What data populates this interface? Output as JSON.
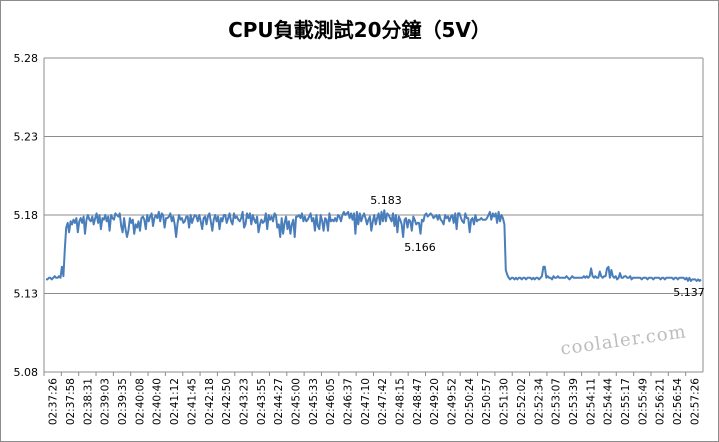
{
  "chart_data": {
    "type": "line",
    "title": "CPU負載測試20分鐘（5V）",
    "xlabel": "",
    "ylabel": "",
    "ylim": [
      5.08,
      5.28
    ],
    "y_ticks": [
      "5.28",
      "5.23",
      "5.18",
      "5.13",
      "5.08"
    ],
    "x_tick_labels": [
      "02:37:26",
      "02:37:58",
      "02:38:31",
      "02:39:03",
      "02:39:35",
      "02:40:08",
      "02:40:40",
      "02:41:12",
      "02:41:45",
      "02:42:18",
      "02:42:50",
      "02:43:23",
      "02:43:55",
      "02:44:27",
      "02:45:00",
      "02:45:33",
      "02:46:05",
      "02:46:37",
      "02:47:10",
      "02:47:42",
      "02:48:15",
      "02:48:47",
      "02:49:20",
      "02:49:52",
      "02:50:24",
      "02:50:57",
      "02:51:30",
      "02:52:02",
      "02:52:34",
      "02:53:07",
      "02:53:39",
      "02:54:11",
      "02:54:44",
      "02:55:17",
      "02:55:49",
      "02:56:21",
      "02:56:54",
      "02:57:26"
    ],
    "grid": true,
    "legend": "none",
    "line_color": "#4a7ebb",
    "annotations": [
      {
        "text": "5.183",
        "x": "02:47:26",
        "y": 5.183
      },
      {
        "text": "5.166",
        "x": "02:48:31",
        "y": 5.166
      },
      {
        "text": "5.137",
        "x": "02:57:40",
        "y": 5.137
      }
    ],
    "series": [
      {
        "values": [
          5.139,
          5.139,
          5.14,
          5.14,
          5.139,
          5.14,
          5.141,
          5.14,
          5.14,
          5.141,
          5.14,
          5.147,
          5.141,
          5.158,
          5.172,
          5.175,
          5.169,
          5.176,
          5.174,
          5.177,
          5.175,
          5.178,
          5.169,
          5.176,
          5.178,
          5.175,
          5.179,
          5.168,
          5.177,
          5.18,
          5.177,
          5.176,
          5.179,
          5.174,
          5.178,
          5.181,
          5.175,
          5.18,
          5.171,
          5.178,
          5.177,
          5.18,
          5.176,
          5.179,
          5.17,
          5.18,
          5.178,
          5.177,
          5.181,
          5.18,
          5.179,
          5.181,
          5.173,
          5.169,
          5.178,
          5.171,
          5.166,
          5.17,
          5.178,
          5.175,
          5.177,
          5.168,
          5.174,
          5.172,
          5.176,
          5.17,
          5.178,
          5.179,
          5.177,
          5.171,
          5.18,
          5.176,
          5.179,
          5.181,
          5.173,
          5.178,
          5.18,
          5.178,
          5.182,
          5.176,
          5.181,
          5.18,
          5.172,
          5.178,
          5.178,
          5.179,
          5.181,
          5.176,
          5.179,
          5.174,
          5.166,
          5.175,
          5.18,
          5.177,
          5.178,
          5.175,
          5.176,
          5.179,
          5.179,
          5.172,
          5.18,
          5.175,
          5.178,
          5.18,
          5.179,
          5.176,
          5.18,
          5.176,
          5.171,
          5.178,
          5.179,
          5.174,
          5.179,
          5.181,
          5.176,
          5.17,
          5.177,
          5.18,
          5.176,
          5.179,
          5.171,
          5.178,
          5.176,
          5.18,
          5.18,
          5.175,
          5.178,
          5.181,
          5.176,
          5.174,
          5.181,
          5.178,
          5.179,
          5.177,
          5.176,
          5.178,
          5.182,
          5.172,
          5.174,
          5.181,
          5.178,
          5.181,
          5.174,
          5.18,
          5.177,
          5.175,
          5.179,
          5.169,
          5.174,
          5.177,
          5.175,
          5.176,
          5.181,
          5.171,
          5.18,
          5.177,
          5.179,
          5.176,
          5.181,
          5.18,
          5.172,
          5.174,
          5.166,
          5.178,
          5.168,
          5.175,
          5.179,
          5.171,
          5.176,
          5.168,
          5.174,
          5.177,
          5.166,
          5.179,
          5.179,
          5.18,
          5.178,
          5.181,
          5.176,
          5.179,
          5.176,
          5.177,
          5.179,
          5.181,
          5.176,
          5.178,
          5.17,
          5.18,
          5.173,
          5.171,
          5.18,
          5.176,
          5.17,
          5.178,
          5.177,
          5.17,
          5.181,
          5.176,
          5.177,
          5.176,
          5.178,
          5.176,
          5.18,
          5.179,
          5.176,
          5.18,
          5.182,
          5.18,
          5.181,
          5.182,
          5.178,
          5.181,
          5.177,
          5.181,
          5.168,
          5.182,
          5.174,
          5.181,
          5.176,
          5.179,
          5.181,
          5.178,
          5.174,
          5.177,
          5.179,
          5.17,
          5.176,
          5.18,
          5.174,
          5.178,
          5.181,
          5.174,
          5.182,
          5.176,
          5.183,
          5.176,
          5.181,
          5.18,
          5.178,
          5.176,
          5.181,
          5.173,
          5.18,
          5.169,
          5.179,
          5.177,
          5.174,
          5.166,
          5.177,
          5.178,
          5.172,
          5.177,
          5.176,
          5.17,
          5.179,
          5.177,
          5.174,
          5.175,
          5.175,
          5.168,
          5.177,
          5.176,
          5.18,
          5.181,
          5.179,
          5.18,
          5.181,
          5.18,
          5.178,
          5.179,
          5.18,
          5.177,
          5.18,
          5.177,
          5.176,
          5.174,
          5.18,
          5.178,
          5.179,
          5.176,
          5.179,
          5.18,
          5.175,
          5.181,
          5.171,
          5.181,
          5.181,
          5.178,
          5.176,
          5.175,
          5.181,
          5.178,
          5.178,
          5.169,
          5.177,
          5.178,
          5.174,
          5.18,
          5.176,
          5.177,
          5.177,
          5.178,
          5.177,
          5.177,
          5.177,
          5.178,
          5.18,
          5.182,
          5.177,
          5.181,
          5.179,
          5.181,
          5.175,
          5.182,
          5.176,
          5.18,
          5.178,
          5.174,
          5.145,
          5.142,
          5.14,
          5.139,
          5.14,
          5.14,
          5.139,
          5.14,
          5.139,
          5.14,
          5.14,
          5.139,
          5.14,
          5.14,
          5.139,
          5.14,
          5.14,
          5.14,
          5.139,
          5.14,
          5.139,
          5.14,
          5.14,
          5.139,
          5.14,
          5.141,
          5.147,
          5.147,
          5.14,
          5.141,
          5.14,
          5.14,
          5.139,
          5.141,
          5.14,
          5.14,
          5.141,
          5.14,
          5.14,
          5.14,
          5.14,
          5.14,
          5.141,
          5.14,
          5.139,
          5.14,
          5.141,
          5.14,
          5.14,
          5.14,
          5.14,
          5.14,
          5.14,
          5.14,
          5.141,
          5.14,
          5.141,
          5.14,
          5.141,
          5.146,
          5.141,
          5.14,
          5.141,
          5.14,
          5.14,
          5.144,
          5.141,
          5.14,
          5.141,
          5.141,
          5.146,
          5.147,
          5.14,
          5.145,
          5.141,
          5.14,
          5.141,
          5.139,
          5.14,
          5.143,
          5.14,
          5.14,
          5.141,
          5.141,
          5.14,
          5.14,
          5.141,
          5.139,
          5.14,
          5.14,
          5.14,
          5.14,
          5.14,
          5.14,
          5.139,
          5.14,
          5.14,
          5.14,
          5.139,
          5.14,
          5.14,
          5.14,
          5.139,
          5.14,
          5.14,
          5.14,
          5.14,
          5.139,
          5.14,
          5.14,
          5.139,
          5.14,
          5.14,
          5.14,
          5.14,
          5.14,
          5.139,
          5.14,
          5.14,
          5.139,
          5.14,
          5.14,
          5.14,
          5.14,
          5.139,
          5.14,
          5.138,
          5.14,
          5.138,
          5.139,
          5.139,
          5.139,
          5.138,
          5.139,
          5.138,
          5.139
        ]
      }
    ]
  },
  "watermark": "coolaler.com"
}
